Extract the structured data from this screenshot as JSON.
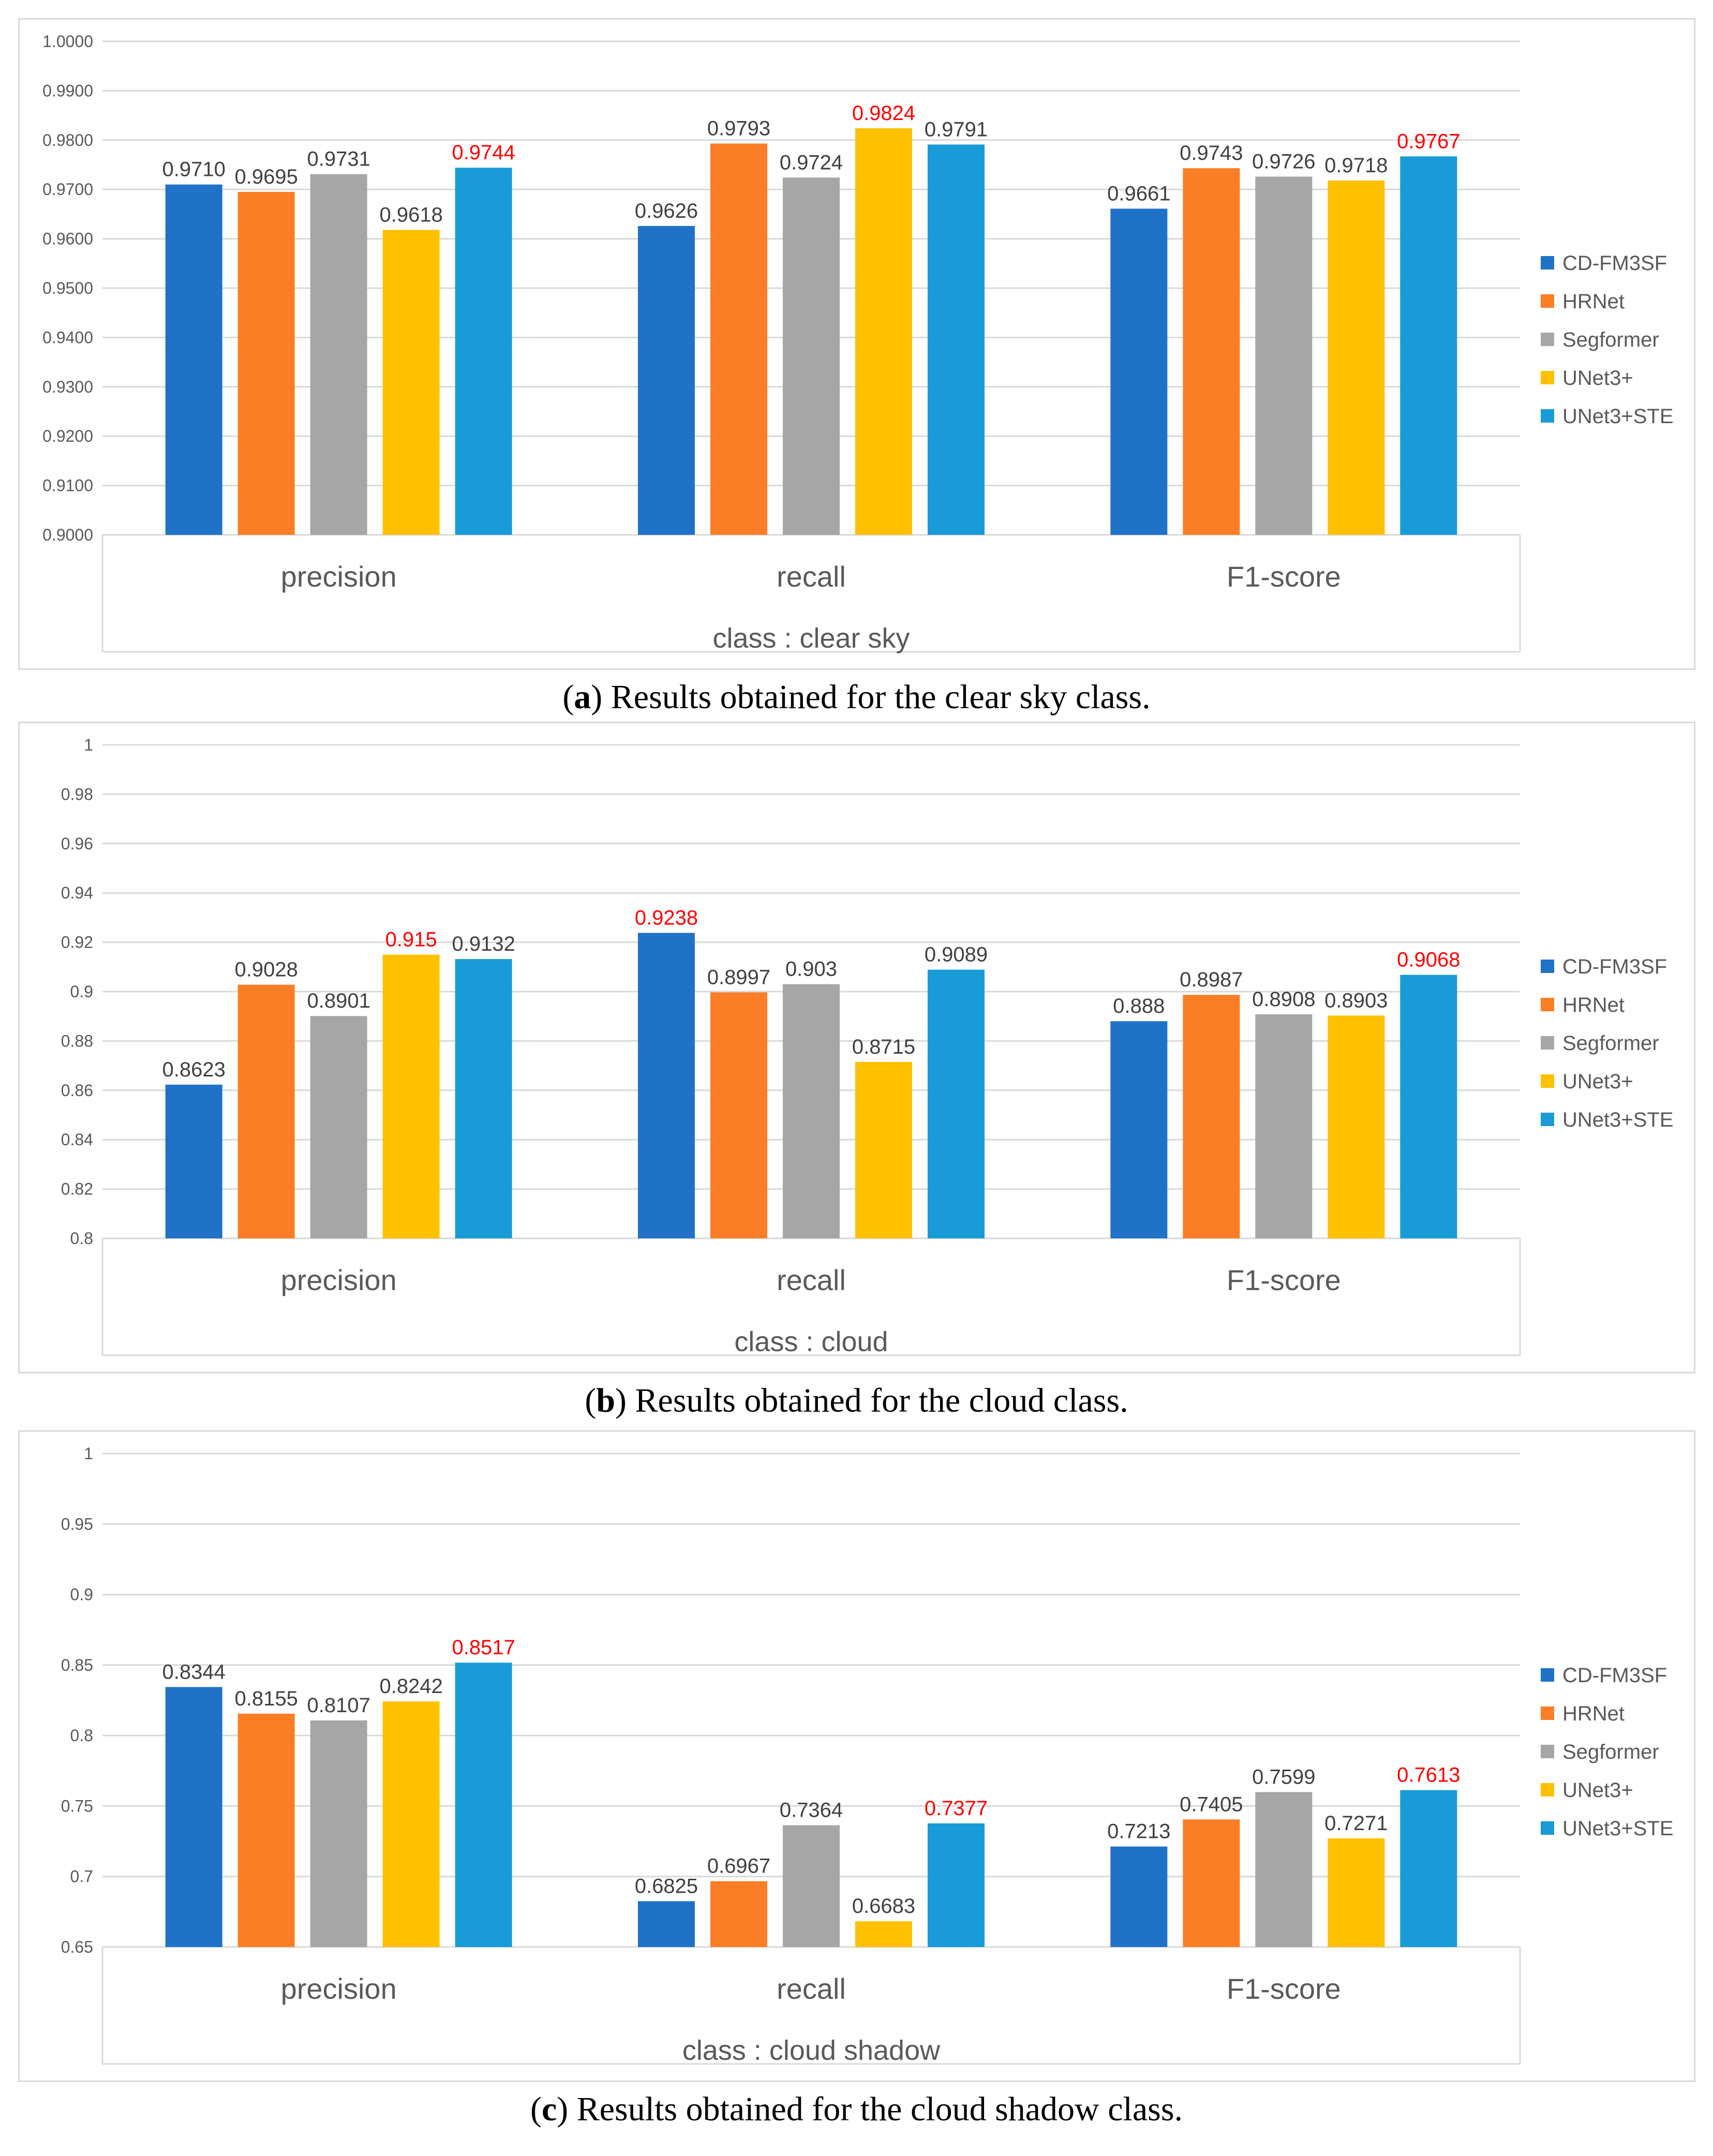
{
  "chart_data": [
    {
      "type": "bar",
      "title": "",
      "xlabel": "class : clear sky",
      "ylabel": "",
      "categories": [
        "precision",
        "recall",
        "F1-score"
      ],
      "ylim": [
        0.9,
        1.0
      ],
      "yticks": [
        "1.0000",
        "0.9900",
        "0.9800",
        "0.9700",
        "0.9600",
        "0.9500",
        "0.9400",
        "0.9300",
        "0.9200",
        "0.9100",
        "0.9000"
      ],
      "series": [
        {
          "name": "CD-FM3SF",
          "values": [
            0.971,
            0.9626,
            0.9661
          ],
          "labels": [
            "0.9710",
            "0.9626",
            "0.9661"
          ]
        },
        {
          "name": "HRNet",
          "values": [
            0.9695,
            0.9793,
            0.9743
          ],
          "labels": [
            "0.9695",
            "0.9793",
            "0.9743"
          ]
        },
        {
          "name": "Segformer",
          "values": [
            0.9731,
            0.9724,
            0.9726
          ],
          "labels": [
            "0.9731",
            "0.9724",
            "0.9726"
          ]
        },
        {
          "name": "UNet3+",
          "values": [
            0.9618,
            0.9824,
            0.9718
          ],
          "labels": [
            "0.9618",
            "0.9824",
            "0.9718"
          ]
        },
        {
          "name": "UNet3+STE",
          "values": [
            0.9744,
            0.9791,
            0.9767
          ],
          "labels": [
            "0.9744",
            "0.9791",
            "0.9767"
          ]
        }
      ],
      "highlights": [
        [
          4,
          0
        ],
        [
          3,
          1
        ],
        [
          4,
          2
        ]
      ],
      "legend_position": "right",
      "grid": true
    },
    {
      "type": "bar",
      "title": "",
      "xlabel": "class : cloud",
      "ylabel": "",
      "categories": [
        "precision",
        "recall",
        "F1-score"
      ],
      "ylim": [
        0.8,
        1.0
      ],
      "yticks": [
        "1",
        "0.98",
        "0.96",
        "0.94",
        "0.92",
        "0.9",
        "0.88",
        "0.86",
        "0.84",
        "0.82",
        "0.8"
      ],
      "series": [
        {
          "name": "CD-FM3SF",
          "values": [
            0.8623,
            0.9238,
            0.888
          ],
          "labels": [
            "0.8623",
            "0.9238",
            "0.888"
          ]
        },
        {
          "name": "HRNet",
          "values": [
            0.9028,
            0.8997,
            0.8987
          ],
          "labels": [
            "0.9028",
            "0.8997",
            "0.8987"
          ]
        },
        {
          "name": "Segformer",
          "values": [
            0.8901,
            0.903,
            0.8908
          ],
          "labels": [
            "0.8901",
            "0.903",
            "0.8908"
          ]
        },
        {
          "name": "UNet3+",
          "values": [
            0.915,
            0.8715,
            0.8903
          ],
          "labels": [
            "0.915",
            "0.8715",
            "0.8903"
          ]
        },
        {
          "name": "UNet3+STE",
          "values": [
            0.9132,
            0.9089,
            0.9068
          ],
          "labels": [
            "0.9132",
            "0.9089",
            "0.9068"
          ]
        }
      ],
      "highlights": [
        [
          3,
          0
        ],
        [
          0,
          1
        ],
        [
          4,
          2
        ]
      ],
      "legend_position": "right",
      "grid": true
    },
    {
      "type": "bar",
      "title": "",
      "xlabel": "class : cloud shadow",
      "ylabel": "",
      "categories": [
        "precision",
        "recall",
        "F1-score"
      ],
      "ylim": [
        0.65,
        1.0
      ],
      "yticks": [
        "1",
        "0.95",
        "0.9",
        "0.85",
        "0.8",
        "0.75",
        "0.7",
        "0.65"
      ],
      "series": [
        {
          "name": "CD-FM3SF",
          "values": [
            0.8344,
            0.6825,
            0.7213
          ],
          "labels": [
            "0.8344",
            "0.6825",
            "0.7213"
          ]
        },
        {
          "name": "HRNet",
          "values": [
            0.8155,
            0.6967,
            0.7405
          ],
          "labels": [
            "0.8155",
            "0.6967",
            "0.7405"
          ]
        },
        {
          "name": "Segformer",
          "values": [
            0.8107,
            0.7364,
            0.7599
          ],
          "labels": [
            "0.8107",
            "0.7364",
            "0.7599"
          ]
        },
        {
          "name": "UNet3+",
          "values": [
            0.8242,
            0.6683,
            0.7271
          ],
          "labels": [
            "0.8242",
            "0.6683",
            "0.7271"
          ]
        },
        {
          "name": "UNet3+STE",
          "values": [
            0.8517,
            0.7377,
            0.7613
          ],
          "labels": [
            "0.8517",
            "0.7377",
            "0.7613"
          ]
        }
      ],
      "highlights": [
        [
          4,
          0
        ],
        [
          4,
          1
        ],
        [
          4,
          2
        ]
      ],
      "legend_position": "right",
      "grid": true
    }
  ],
  "colors": {
    "series": [
      "#1f72c8",
      "#fb7e26",
      "#a6a6a6",
      "#ffc000",
      "#199bd8"
    ],
    "highlight": "#ff0000",
    "label": "#404040",
    "tick": "#595959",
    "grid": "#d9d9d9"
  },
  "captions": [
    {
      "letter": "a",
      "open": "(",
      "close": ")",
      "text": " Results obtained for the clear sky class."
    },
    {
      "letter": "b",
      "open": "(",
      "close": ")",
      "text": " Results obtained for the cloud class."
    },
    {
      "letter": "c",
      "open": "(",
      "close": ")",
      "text": " Results obtained for the cloud shadow class."
    }
  ]
}
